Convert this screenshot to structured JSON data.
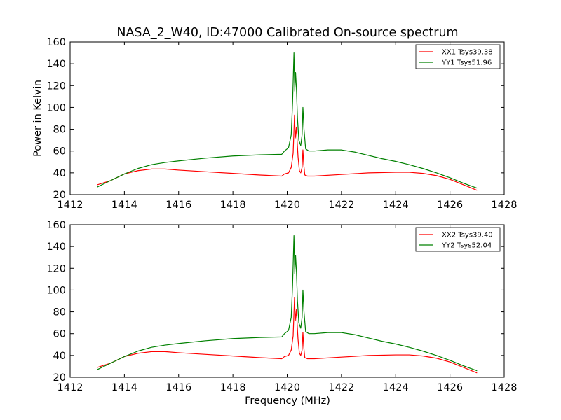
{
  "chart_data": [
    {
      "type": "line",
      "title": "NASA_2_W40, ID:47000 Calibrated On-source spectrum",
      "xlabel": "",
      "ylabel": "Power in Kelvin",
      "xlim": [
        1412,
        1428
      ],
      "ylim": [
        20,
        160
      ],
      "xticks": [
        1412,
        1414,
        1416,
        1418,
        1420,
        1422,
        1424,
        1426,
        1428
      ],
      "yticks": [
        20,
        40,
        60,
        80,
        100,
        120,
        140,
        160
      ],
      "grid": false,
      "legend": "top-right",
      "series": [
        {
          "name": "XX1 Tsys39.38",
          "color": "#ff0000",
          "points": [
            [
              1413.0,
              29
            ],
            [
              1413.5,
              33
            ],
            [
              1414.0,
              39
            ],
            [
              1414.5,
              42
            ],
            [
              1415.0,
              43.5
            ],
            [
              1415.5,
              43.5
            ],
            [
              1416.0,
              42.5
            ],
            [
              1417.0,
              41
            ],
            [
              1418.0,
              39.5
            ],
            [
              1419.0,
              38
            ],
            [
              1419.8,
              37
            ],
            [
              1419.9,
              39
            ],
            [
              1420.05,
              40
            ],
            [
              1420.15,
              45
            ],
            [
              1420.22,
              58
            ],
            [
              1420.27,
              93
            ],
            [
              1420.3,
              72
            ],
            [
              1420.34,
              82
            ],
            [
              1420.37,
              68
            ],
            [
              1420.4,
              55
            ],
            [
              1420.45,
              42
            ],
            [
              1420.5,
              40
            ],
            [
              1420.55,
              45
            ],
            [
              1420.58,
              61
            ],
            [
              1420.61,
              48
            ],
            [
              1420.65,
              38
            ],
            [
              1420.75,
              37
            ],
            [
              1421.0,
              37
            ],
            [
              1422.0,
              38.5
            ],
            [
              1423.0,
              40
            ],
            [
              1424.0,
              40.5
            ],
            [
              1424.5,
              40.5
            ],
            [
              1425.0,
              39.5
            ],
            [
              1425.5,
              37.5
            ],
            [
              1426.0,
              34
            ],
            [
              1426.5,
              29
            ],
            [
              1427.0,
              24
            ]
          ]
        },
        {
          "name": "YY1 Tsys51.96",
          "color": "#008000",
          "points": [
            [
              1413.0,
              27
            ],
            [
              1413.5,
              33
            ],
            [
              1414.0,
              39
            ],
            [
              1414.5,
              44
            ],
            [
              1415.0,
              47.5
            ],
            [
              1415.5,
              49.5
            ],
            [
              1416.0,
              51
            ],
            [
              1417.0,
              53.5
            ],
            [
              1418.0,
              55.5
            ],
            [
              1419.0,
              56.5
            ],
            [
              1419.8,
              57
            ],
            [
              1419.9,
              60
            ],
            [
              1420.05,
              63
            ],
            [
              1420.15,
              75
            ],
            [
              1420.2,
              105
            ],
            [
              1420.25,
              150
            ],
            [
              1420.28,
              115
            ],
            [
              1420.31,
              132
            ],
            [
              1420.34,
              118
            ],
            [
              1420.38,
              90
            ],
            [
              1420.43,
              70
            ],
            [
              1420.5,
              65
            ],
            [
              1420.55,
              75
            ],
            [
              1420.58,
              100
            ],
            [
              1420.62,
              80
            ],
            [
              1420.68,
              62
            ],
            [
              1420.8,
              60
            ],
            [
              1421.0,
              60
            ],
            [
              1421.5,
              61
            ],
            [
              1422.0,
              61
            ],
            [
              1422.5,
              59
            ],
            [
              1423.0,
              56
            ],
            [
              1423.5,
              53
            ],
            [
              1424.0,
              50.5
            ],
            [
              1424.5,
              47.5
            ],
            [
              1425.0,
              44
            ],
            [
              1425.5,
              40
            ],
            [
              1426.0,
              35.5
            ],
            [
              1426.5,
              30.5
            ],
            [
              1427.0,
              26
            ]
          ]
        }
      ]
    },
    {
      "type": "line",
      "title": "",
      "xlabel": "Frequency (MHz)",
      "ylabel": "",
      "xlim": [
        1412,
        1428
      ],
      "ylim": [
        20,
        160
      ],
      "xticks": [
        1412,
        1414,
        1416,
        1418,
        1420,
        1422,
        1424,
        1426,
        1428
      ],
      "yticks": [
        20,
        40,
        60,
        80,
        100,
        120,
        140,
        160
      ],
      "grid": false,
      "legend": "top-right",
      "series": [
        {
          "name": "XX2 Tsys39.40",
          "color": "#ff0000",
          "points": [
            [
              1413.0,
              29
            ],
            [
              1413.5,
              33
            ],
            [
              1414.0,
              39
            ],
            [
              1414.5,
              42
            ],
            [
              1415.0,
              43.5
            ],
            [
              1415.5,
              43.5
            ],
            [
              1416.0,
              42.5
            ],
            [
              1417.0,
              41
            ],
            [
              1418.0,
              39.5
            ],
            [
              1419.0,
              38
            ],
            [
              1419.8,
              37
            ],
            [
              1419.9,
              39
            ],
            [
              1420.05,
              40
            ],
            [
              1420.15,
              45
            ],
            [
              1420.22,
              58
            ],
            [
              1420.27,
              93
            ],
            [
              1420.3,
              72
            ],
            [
              1420.34,
              82
            ],
            [
              1420.37,
              68
            ],
            [
              1420.4,
              55
            ],
            [
              1420.45,
              42
            ],
            [
              1420.5,
              40
            ],
            [
              1420.55,
              45
            ],
            [
              1420.58,
              61
            ],
            [
              1420.61,
              48
            ],
            [
              1420.65,
              38
            ],
            [
              1420.75,
              37
            ],
            [
              1421.0,
              37
            ],
            [
              1422.0,
              38.5
            ],
            [
              1423.0,
              40
            ],
            [
              1424.0,
              40.5
            ],
            [
              1424.5,
              40.5
            ],
            [
              1425.0,
              39.5
            ],
            [
              1425.5,
              37.5
            ],
            [
              1426.0,
              34
            ],
            [
              1426.5,
              29
            ],
            [
              1427.0,
              24
            ]
          ]
        },
        {
          "name": "YY2 Tsys52.04",
          "color": "#008000",
          "points": [
            [
              1413.0,
              27
            ],
            [
              1413.5,
              33
            ],
            [
              1414.0,
              39
            ],
            [
              1414.5,
              44
            ],
            [
              1415.0,
              47.5
            ],
            [
              1415.5,
              49.5
            ],
            [
              1416.0,
              51
            ],
            [
              1417.0,
              53.5
            ],
            [
              1418.0,
              55.5
            ],
            [
              1419.0,
              56.5
            ],
            [
              1419.8,
              57
            ],
            [
              1419.9,
              60
            ],
            [
              1420.05,
              63
            ],
            [
              1420.15,
              75
            ],
            [
              1420.2,
              105
            ],
            [
              1420.25,
              150
            ],
            [
              1420.28,
              115
            ],
            [
              1420.31,
              132
            ],
            [
              1420.34,
              118
            ],
            [
              1420.38,
              90
            ],
            [
              1420.43,
              70
            ],
            [
              1420.5,
              65
            ],
            [
              1420.55,
              75
            ],
            [
              1420.58,
              100
            ],
            [
              1420.62,
              80
            ],
            [
              1420.68,
              62
            ],
            [
              1420.8,
              60
            ],
            [
              1421.0,
              60
            ],
            [
              1421.5,
              61
            ],
            [
              1422.0,
              61
            ],
            [
              1422.5,
              59
            ],
            [
              1423.0,
              56
            ],
            [
              1423.5,
              53
            ],
            [
              1424.0,
              50.5
            ],
            [
              1424.5,
              47.5
            ],
            [
              1425.0,
              44
            ],
            [
              1425.5,
              40
            ],
            [
              1426.0,
              35.5
            ],
            [
              1426.5,
              30.5
            ],
            [
              1427.0,
              26
            ]
          ]
        }
      ]
    }
  ]
}
